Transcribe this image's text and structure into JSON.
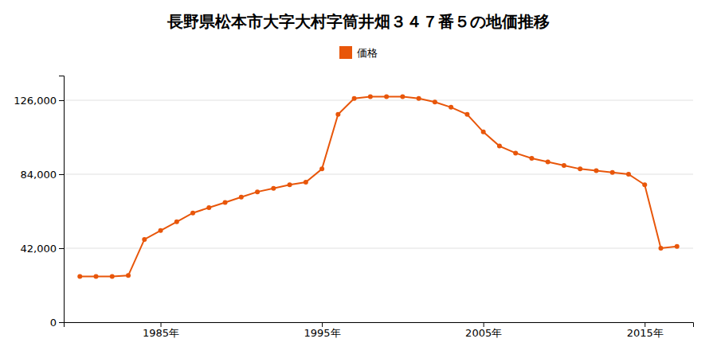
{
  "chart_data": {
    "type": "line",
    "title": "長野県松本市大字大村字筒井畑３４７番５の地価推移",
    "x": [
      1980,
      1981,
      1982,
      1983,
      1984,
      1985,
      1986,
      1987,
      1988,
      1989,
      1990,
      1991,
      1992,
      1993,
      1994,
      1995,
      1996,
      1997,
      1998,
      1999,
      2000,
      2001,
      2002,
      2003,
      2004,
      2005,
      2006,
      2007,
      2008,
      2009,
      2010,
      2011,
      2012,
      2013,
      2014,
      2015,
      2016,
      2017
    ],
    "series": [
      {
        "name": "価格",
        "color": "#e8560a",
        "marker": "circle",
        "values": [
          26000,
          26000,
          26000,
          26500,
          47000,
          52000,
          57000,
          62000,
          65000,
          68000,
          71000,
          74000,
          76000,
          78000,
          79500,
          87000,
          118000,
          127000,
          128000,
          128000,
          128000,
          127000,
          125000,
          122000,
          118000,
          108000,
          100000,
          96000,
          93000,
          91000,
          89000,
          87000,
          86000,
          85000,
          84000,
          78000,
          42000,
          43000
        ]
      }
    ],
    "xlim": [
      1979,
      2018
    ],
    "ylim": [
      0,
      140000
    ],
    "xticks": [
      {
        "value": 1985,
        "label": "1985年"
      },
      {
        "value": 1995,
        "label": "1995年"
      },
      {
        "value": 2005,
        "label": "2005年"
      },
      {
        "value": 2015,
        "label": "2015年"
      }
    ],
    "yticks": [
      0,
      {
        "value": 42000,
        "label": "42,000"
      },
      {
        "value": 84000,
        "label": "84,000"
      },
      {
        "value": 126000,
        "label": "126,000"
      }
    ],
    "grid": true,
    "legend": "top"
  }
}
